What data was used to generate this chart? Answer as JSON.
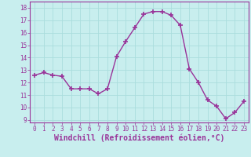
{
  "x": [
    0,
    1,
    2,
    3,
    4,
    5,
    6,
    7,
    8,
    9,
    10,
    11,
    12,
    13,
    14,
    15,
    16,
    17,
    18,
    19,
    20,
    21,
    22,
    23
  ],
  "y": [
    12.6,
    12.8,
    12.6,
    12.5,
    11.5,
    11.5,
    11.5,
    11.1,
    11.5,
    14.1,
    15.3,
    16.4,
    17.5,
    17.7,
    17.7,
    17.4,
    16.6,
    13.1,
    12.0,
    10.6,
    10.1,
    9.1,
    9.6,
    10.5
  ],
  "line_color": "#993399",
  "marker": "+",
  "marker_size": 4,
  "marker_lw": 1.2,
  "bg_color": "#c8eeee",
  "grid_color": "#aadddd",
  "xlabel": "Windchill (Refroidissement éolien,°C)",
  "xlabel_color": "#993399",
  "tick_color": "#993399",
  "spine_color": "#993399",
  "ylim": [
    8.8,
    18.5
  ],
  "xlim": [
    -0.5,
    23.5
  ],
  "yticks": [
    9,
    10,
    11,
    12,
    13,
    14,
    15,
    16,
    17,
    18
  ],
  "xticks": [
    0,
    1,
    2,
    3,
    4,
    5,
    6,
    7,
    8,
    9,
    10,
    11,
    12,
    13,
    14,
    15,
    16,
    17,
    18,
    19,
    20,
    21,
    22,
    23
  ],
  "tick_fontsize": 5.5,
  "xlabel_fontsize": 7.0,
  "linewidth": 1.0
}
